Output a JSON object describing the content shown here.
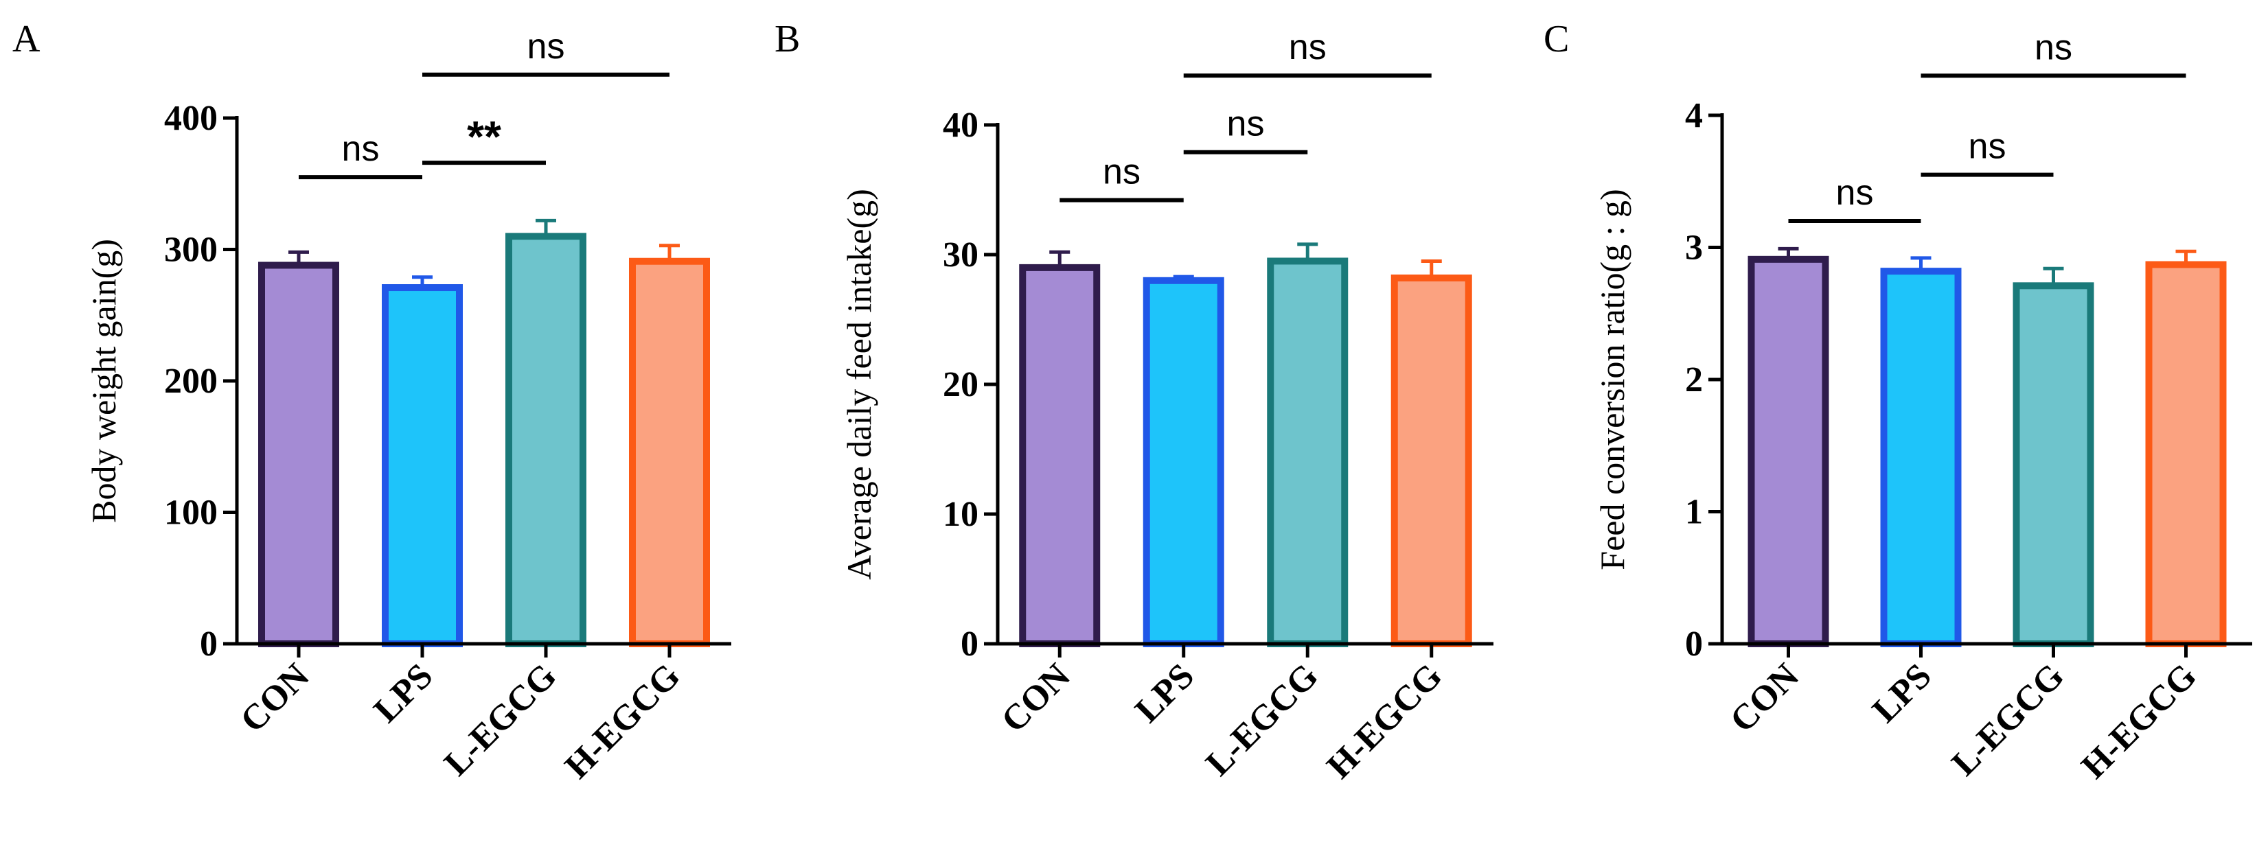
{
  "chart_data": [
    {
      "panel": "A",
      "type": "bar",
      "categories": [
        "CON",
        "LPS",
        "L-EGCG",
        "H-EGCG"
      ],
      "values": [
        288,
        271,
        310,
        291
      ],
      "errors": [
        10,
        8,
        12,
        12
      ],
      "ylabel": "Body weight gain(g)",
      "ylim": [
        0,
        400
      ],
      "yticks": [
        0,
        100,
        200,
        300,
        400
      ],
      "significance": [
        {
          "from": 0,
          "to": 1,
          "label": "ns",
          "level": 355
        },
        {
          "from": 1,
          "to": 2,
          "label": "**",
          "level": 366
        },
        {
          "from": 1,
          "to": 3,
          "label": "ns",
          "level": 433
        }
      ]
    },
    {
      "panel": "B",
      "type": "bar",
      "categories": [
        "CON",
        "LPS",
        "L-EGCG",
        "H-EGCG"
      ],
      "values": [
        29.0,
        28.0,
        29.5,
        28.2
      ],
      "errors": [
        1.2,
        0.3,
        1.3,
        1.3
      ],
      "ylabel": "Average daily feed intake(g)",
      "ylim": [
        0,
        40
      ],
      "yticks": [
        0,
        10,
        20,
        30,
        40
      ],
      "significance": [
        {
          "from": 0,
          "to": 1,
          "label": "ns",
          "level": 34.2
        },
        {
          "from": 1,
          "to": 2,
          "label": "ns",
          "level": 37.9
        },
        {
          "from": 1,
          "to": 3,
          "label": "ns",
          "level": 43.8
        }
      ]
    },
    {
      "panel": "C",
      "type": "bar",
      "categories": [
        "CON",
        "LPS",
        "L-EGCG",
        "H-EGCG"
      ],
      "values": [
        2.91,
        2.82,
        2.71,
        2.87
      ],
      "errors": [
        0.08,
        0.1,
        0.13,
        0.1
      ],
      "ylabel": "Feed conversion ratio(g : g)",
      "ylim": [
        0,
        4
      ],
      "yticks": [
        0,
        1,
        2,
        3,
        4
      ],
      "significance": [
        {
          "from": 0,
          "to": 1,
          "label": "ns",
          "level": 3.2
        },
        {
          "from": 1,
          "to": 2,
          "label": "ns",
          "level": 3.55
        },
        {
          "from": 1,
          "to": 3,
          "label": "ns",
          "level": 4.3
        }
      ]
    }
  ],
  "colors": {
    "fills": [
      "#a48bd4",
      "#1ec4fa",
      "#6ec4cc",
      "#fba280"
    ],
    "edges": [
      "#2f1c4c",
      "#2058e8",
      "#1a7a7a",
      "#fc5a16"
    ]
  }
}
